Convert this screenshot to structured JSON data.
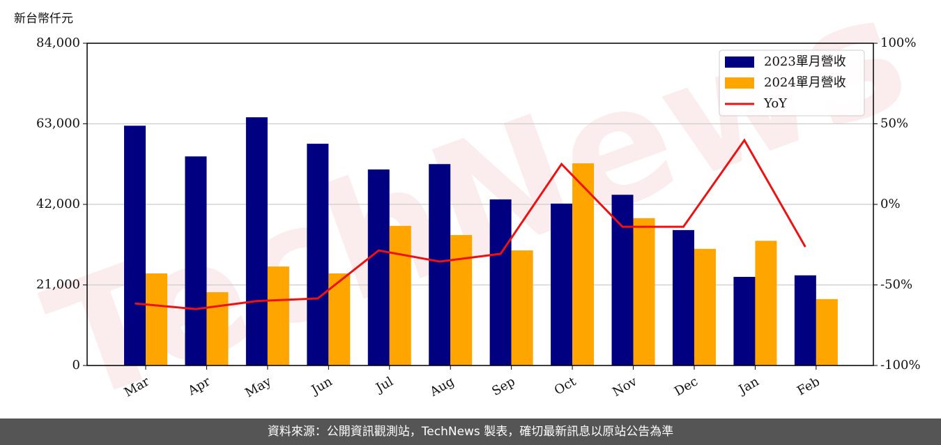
{
  "chart_data": {
    "type": "bar",
    "y_label": "新台幣仟元",
    "watermark": "TechNews",
    "categories": [
      "Mar",
      "Apr",
      "May",
      "Jun",
      "Jul",
      "Aug",
      "Sep",
      "Oct",
      "Nov",
      "Dec",
      "Jan",
      "Feb"
    ],
    "series": [
      {
        "name": "2023單月營收",
        "color": "#000080",
        "type": "bar",
        "values": [
          62500,
          54500,
          64700,
          57800,
          51100,
          52500,
          43300,
          42200,
          44500,
          35300,
          23100,
          23500
        ]
      },
      {
        "name": "2024單月營收",
        "color": "#ffa500",
        "type": "bar",
        "values": [
          24000,
          19100,
          25800,
          24000,
          36400,
          34000,
          30000,
          52700,
          38400,
          30400,
          32500,
          17300
        ]
      },
      {
        "name": "YoY",
        "color": "#ee1111",
        "type": "line",
        "axis": "y2",
        "values": [
          -61.5,
          -65,
          -60,
          -58.4,
          -28.6,
          -35.5,
          -30.7,
          25,
          -13.9,
          -13.9,
          39.8,
          -26.4
        ]
      }
    ],
    "ylim": [
      0,
      84000
    ],
    "yticks": [
      0,
      {
        "value": 21000,
        "label": "21,000"
      },
      {
        "value": 42000,
        "label": "42,000"
      },
      {
        "value": 63000,
        "label": "63,000"
      },
      {
        "value": 84000,
        "label": "84,000"
      }
    ],
    "y2lim": [
      -100,
      100
    ],
    "y2ticks": [
      {
        "value": -100,
        "label": "-100%"
      },
      {
        "value": -50,
        "label": "-50%"
      },
      {
        "value": 0,
        "label": "0%"
      },
      {
        "value": 50,
        "label": "50%"
      },
      {
        "value": 100,
        "label": "100%"
      }
    ],
    "grid": true,
    "legend": "upper right"
  },
  "footer": "資料來源：公開資訊觀測站，TechNews 製表，確切最新訊息以原站公告為準"
}
